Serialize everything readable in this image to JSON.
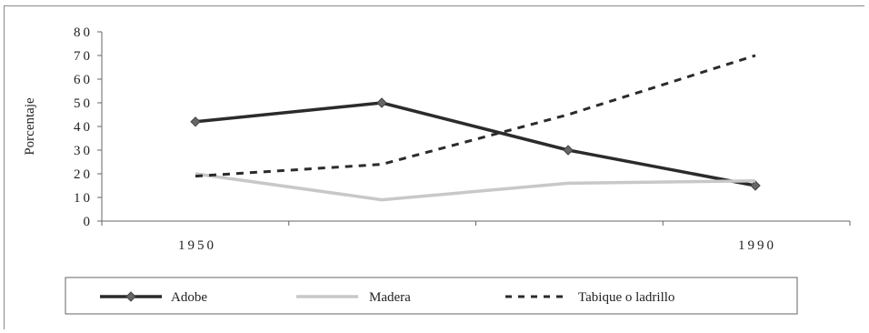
{
  "chart_data": {
    "type": "line",
    "title": "",
    "xlabel": "",
    "ylabel": "Porcentaje",
    "ylim": [
      0,
      80
    ],
    "yticks": [
      "0",
      "10",
      "20",
      "30",
      "40",
      "50",
      "60",
      "70",
      "80"
    ],
    "x_tick_labels": [
      "1950",
      "",
      "",
      "1990"
    ],
    "grid": false,
    "legend_position": "bottom",
    "series": [
      {
        "name": "Adobe",
        "values": [
          42,
          50,
          30,
          15
        ],
        "color": "#2b2b2b",
        "style": "solid",
        "marker": "diamond"
      },
      {
        "name": "Madera",
        "values": [
          20,
          9,
          16,
          17
        ],
        "color": "#c8c8c8",
        "style": "solid",
        "marker": "none"
      },
      {
        "name": "Tabique o ladrillo",
        "values": [
          19,
          24,
          45,
          70
        ],
        "color": "#2b2b2b",
        "style": "dashed",
        "marker": "none"
      }
    ]
  }
}
